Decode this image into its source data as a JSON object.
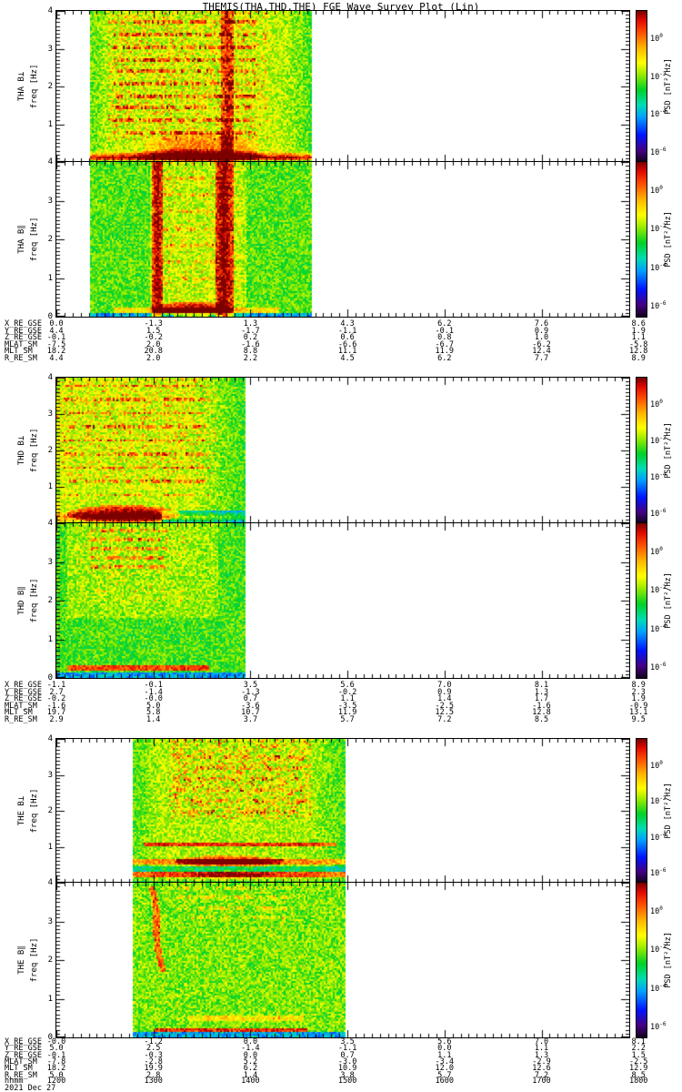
{
  "title": "THEMIS(THA,THD,THE) FGE Wave Survey Plot (Lin)",
  "date_label": "2021 Dec 27",
  "chart_data": {
    "type": "heatmap",
    "subtype": "wave-survey-spectrograms",
    "title": "THEMIS(THA,THD,THE) FGE Wave Survey Plot (Lin)",
    "date": "2021 Dec 27",
    "time_axis": {
      "label": "hhmm",
      "ticks": [
        "1200",
        "1300",
        "1400",
        "1500",
        "1600",
        "1700",
        "1800"
      ],
      "start": "1200",
      "end": "1800"
    },
    "freq_axis": {
      "label": "freq [Hz]",
      "min": 0,
      "max": 4,
      "major_ticks": [
        0,
        1,
        2,
        3,
        4
      ]
    },
    "colorbar": {
      "label": "PSD [nT²/Hz]",
      "base": "10",
      "tick_exponents": [
        "0",
        "-2",
        "-4",
        "-6"
      ],
      "top_color": "#7d0000",
      "bottom_color": "#0f0019"
    },
    "panels": [
      {
        "name": "THA B⊥",
        "sat": "THA",
        "component": "B-perp",
        "t_start": "12:21",
        "t_end": "14:38",
        "base": 0.615,
        "seed": 11,
        "description": "yellow broadband noise; strong red band below 0.3 Hz; harmonic red dashed lines; vertical red stripe near 13:50",
        "features": [
          {
            "type": "fadeL",
            "w": 0.1,
            "amp": -0.07
          },
          {
            "type": "fadeR",
            "w": 0.15,
            "amp": -0.09
          },
          {
            "type": "hband",
            "fy": 0.035,
            "h": 0.045,
            "amp": 0.38,
            "soft": true
          },
          {
            "type": "hband",
            "fy": 0.0,
            "h": 0.015,
            "amp": -0.18
          },
          {
            "type": "blob",
            "fx": 0.5,
            "fy": 0.1,
            "rx": 0.26,
            "ry": 0.1,
            "amp": 0.2
          },
          {
            "type": "blob",
            "fx": 0.48,
            "fy": 0.045,
            "rx": 0.3,
            "ry": 0.05,
            "amp": 0.18
          },
          {
            "type": "lines",
            "n": 10,
            "fy0": 0.2,
            "fy1": 0.93,
            "fx0": 0.1,
            "fx1": 0.74,
            "amp": 0.3,
            "prob": 0.6
          },
          {
            "type": "vband",
            "fx": 0.615,
            "w": 0.03,
            "amp": 0.3
          },
          {
            "type": "speckle",
            "fx0": 0.08,
            "fx1": 0.8,
            "fy0": 0.15,
            "fy1": 1,
            "amp": 0.22,
            "prob": 0.28
          }
        ]
      },
      {
        "name": "THA B∥",
        "sat": "THA",
        "component": "B-par",
        "t_start": "12:21",
        "t_end": "14:38",
        "base": 0.535,
        "seed": 22,
        "description": "green background; two full-height red vertical stripes ~13:05 and ~13:50; red blob below 0.3 Hz",
        "features": [
          {
            "type": "box",
            "fx0": 0.27,
            "fx1": 0.7,
            "fy0": 0,
            "fy1": 1,
            "amp": 0.07
          },
          {
            "type": "vband",
            "fx": 0.3,
            "w": 0.025,
            "amp": 0.4
          },
          {
            "type": "vband",
            "fx": 0.6,
            "w": 0.04,
            "amp": 0.42
          },
          {
            "type": "blob",
            "fx": 0.46,
            "fy": 0.055,
            "rx": 0.17,
            "ry": 0.05,
            "amp": 0.4
          },
          {
            "type": "hband",
            "fy": 0.05,
            "h": 0.02,
            "amp": 0.15,
            "fx0": 0.1,
            "fx1": 0.85
          },
          {
            "type": "hband",
            "fy": 0.012,
            "h": 0.022,
            "amp": -0.22
          },
          {
            "type": "lines",
            "n": 7,
            "fy0": 0.25,
            "fy1": 0.9,
            "fx0": 0.32,
            "fx1": 0.62,
            "amp": 0.18,
            "prob": 0.5
          },
          {
            "type": "speckle",
            "fx0": 0.3,
            "fx1": 0.68,
            "fy0": 0.1,
            "fy1": 1,
            "amp": 0.15,
            "prob": 0.2
          }
        ]
      },
      {
        "name": "THD B⊥",
        "sat": "THD",
        "component": "B-perp",
        "t_start": "12:00",
        "t_end": "13:57",
        "base": 0.62,
        "seed": 33,
        "description": "yellow noise; intense red blob below 0.3 Hz near 12:40; scattered red harmonic dashes; cyan lower-right",
        "features": [
          {
            "type": "fadeR",
            "w": 0.3,
            "amp": -0.1
          },
          {
            "type": "hband",
            "fy": 0.05,
            "h": 0.04,
            "amp": 0.2,
            "soft": true
          },
          {
            "type": "blob",
            "fx": 0.35,
            "fy": 0.07,
            "rx": 0.3,
            "ry": 0.06,
            "amp": 0.38
          },
          {
            "type": "hband",
            "fy": 0.0,
            "h": 0.012,
            "amp": -0.15
          },
          {
            "type": "box",
            "fx0": 0.55,
            "fx1": 1,
            "fy0": 0,
            "fy1": 0.09,
            "amp": -0.22
          },
          {
            "type": "lines",
            "n": 9,
            "fy0": 0.2,
            "fy1": 0.95,
            "fx0": 0.03,
            "fx1": 0.8,
            "amp": 0.27,
            "prob": 0.5
          },
          {
            "type": "speckle",
            "fx0": 0,
            "fx1": 0.85,
            "fy0": 0.3,
            "fy1": 1,
            "amp": 0.2,
            "prob": 0.25
          }
        ]
      },
      {
        "name": "THD B∥",
        "sat": "THD",
        "component": "B-par",
        "t_start": "12:00",
        "t_end": "13:57",
        "base": 0.525,
        "seed": 44,
        "description": "green-cyan background; orange dashes at top; thin red-orange line near 0.25 Hz; cyan bottom strip",
        "features": [
          {
            "type": "box",
            "fx0": 0.05,
            "fx1": 0.85,
            "fy0": 0.4,
            "fy1": 1,
            "amp": 0.06
          },
          {
            "type": "lines",
            "n": 5,
            "fy0": 0.72,
            "fy1": 0.96,
            "fx0": 0.18,
            "fx1": 0.58,
            "amp": 0.25,
            "prob": 0.65
          },
          {
            "type": "hband",
            "fy": 0.07,
            "h": 0.018,
            "amp": 0.35,
            "fx0": 0.05,
            "fx1": 0.8
          },
          {
            "type": "hband",
            "fy": 0.015,
            "h": 0.025,
            "amp": -0.22
          },
          {
            "type": "speckle",
            "fx0": 0.1,
            "fx1": 0.7,
            "fy0": 0.5,
            "fy1": 1,
            "amp": 0.15,
            "prob": 0.2
          }
        ]
      },
      {
        "name": "THE B⊥",
        "sat": "THE",
        "component": "B-perp",
        "t_start": "12:47",
        "t_end": "14:59",
        "base": 0.6,
        "seed": 55,
        "description": "yellow noise; dense red speckle above 2 Hz; red line ~1.1 Hz; strong red bands ~0.6 and ~0.25 Hz",
        "features": [
          {
            "type": "fadeL",
            "w": 0.12,
            "amp": -0.07
          },
          {
            "type": "fadeR",
            "w": 0.18,
            "amp": -0.08
          },
          {
            "type": "speckle",
            "fx0": 0.17,
            "fx1": 0.83,
            "fy0": 0.45,
            "fy1": 1,
            "amp": 0.26,
            "prob": 0.35
          },
          {
            "type": "lines",
            "n": 6,
            "fy0": 0.5,
            "fy1": 0.88,
            "fx0": 0.2,
            "fx1": 0.8,
            "amp": 0.2,
            "prob": 0.45
          },
          {
            "type": "hband",
            "fy": 0.27,
            "h": 0.016,
            "amp": 0.3,
            "fx0": 0.05,
            "fx1": 0.95
          },
          {
            "type": "blob",
            "fx": 0.45,
            "fy": 0.155,
            "rx": 0.26,
            "ry": 0.04,
            "amp": 0.34
          },
          {
            "type": "hband",
            "fy": 0.155,
            "h": 0.016,
            "amp": 0.2,
            "fx0": 0,
            "fx1": 1
          },
          {
            "type": "hband",
            "fy": 0.105,
            "h": 0.018,
            "amp": -0.14
          },
          {
            "type": "hband",
            "fy": 0.06,
            "h": 0.022,
            "amp": 0.28,
            "fx0": 0,
            "fx1": 1
          },
          {
            "type": "blob",
            "fx": 0.47,
            "fy": 0.06,
            "rx": 0.2,
            "ry": 0.03,
            "amp": 0.12
          },
          {
            "type": "hband",
            "fy": 0.0,
            "h": 0.015,
            "amp": -0.1
          }
        ]
      },
      {
        "name": "THE B∥",
        "sat": "THE",
        "component": "B-par",
        "t_start": "12:47",
        "t_end": "14:59",
        "base": 0.555,
        "seed": 66,
        "description": "green mottle; curved red falling-tone trace near 13:00; thin red line ~0.2 Hz; cyan bottom strip",
        "features": [
          {
            "type": "arc",
            "x0": 0.085,
            "dx": 0.05,
            "ytop": 0.98,
            "dy": 0.55,
            "w": 0.014,
            "amp": 0.33
          },
          {
            "type": "lines",
            "n": 4,
            "fy0": 0.78,
            "fy1": 0.97,
            "fx0": 0.2,
            "fx1": 0.75,
            "amp": 0.15,
            "prob": 0.5
          },
          {
            "type": "hband",
            "fy": 0.13,
            "h": 0.02,
            "amp": 0.12,
            "fx0": 0.25,
            "fx1": 0.8
          },
          {
            "type": "hband",
            "fy": 0.055,
            "h": 0.014,
            "amp": 0.33,
            "fx0": 0.1,
            "fx1": 0.82
          },
          {
            "type": "hband",
            "fy": 0.015,
            "h": 0.028,
            "amp": -0.25
          },
          {
            "type": "speckle",
            "fx0": 0,
            "fx1": 1,
            "fy0": 0,
            "fy1": 1,
            "amp": 0.1,
            "prob": 0.2
          }
        ]
      }
    ],
    "ephemeris": {
      "columns": [
        "1200",
        "1300",
        "1400",
        "1500",
        "1600",
        "1700",
        "1800"
      ],
      "blocks": [
        {
          "sat": "THA",
          "rows": [
            {
              "label": "X_RE_GSE",
              "values": [
                "0.0",
                "-1.3",
                "1.3",
                "4.3",
                "6.2",
                "7.6",
                "8.6"
              ]
            },
            {
              "label": "Y_RE_GSE",
              "values": [
                "4.4",
                "1.5",
                "-1.7",
                "-1.1",
                "-0.1",
                "0.9",
                "1.9"
              ]
            },
            {
              "label": "Z_RE_GSE",
              "values": [
                "-0.1",
                "-0.2",
                "0.2",
                "0.6",
                "0.8",
                "1.0",
                "1.1"
              ]
            },
            {
              "label": "MLAT_SM",
              "values": [
                "-7.5",
                "2.0",
                "-1.6",
                "-6.6",
                "-6.7",
                "-6.2",
                "-5.8"
              ]
            },
            {
              "label": "MLT_SM",
              "values": [
                "18.2",
                "20.8",
                "8.8",
                "11.1",
                "11.9",
                "12.4",
                "12.8"
              ]
            },
            {
              "label": "R_RE_SM",
              "values": [
                "4.4",
                "2.0",
                "2.2",
                "4.5",
                "6.2",
                "7.7",
                "8.9"
              ]
            }
          ]
        },
        {
          "sat": "THD",
          "rows": [
            {
              "label": "X_RE_GSE",
              "values": [
                "-1.1",
                "-0.1",
                "3.5",
                "5.6",
                "7.0",
                "8.1",
                "8.9"
              ]
            },
            {
              "label": "Y_RE_GSE",
              "values": [
                "2.7",
                "-1.4",
                "-1.3",
                "-0.2",
                "0.9",
                "1.3",
                "2.3"
              ]
            },
            {
              "label": "Z_RE_GSE",
              "values": [
                "-0.2",
                "-0.0",
                "0.7",
                "1.1",
                "1.4",
                "1.7",
                "1.9"
              ]
            },
            {
              "label": "MLAT_SM",
              "values": [
                "-1.6",
                "5.0",
                "-3.6",
                "-3.5",
                "-2.5",
                "-1.6",
                "-0.9"
              ]
            },
            {
              "label": "MLT_SM",
              "values": [
                "19.7",
                "5.8",
                "10.7",
                "11.9",
                "12.5",
                "12.8",
                "13.1"
              ]
            },
            {
              "label": "R_RE_SM",
              "values": [
                "2.9",
                "1.4",
                "3.7",
                "5.7",
                "7.2",
                "8.5",
                "9.5"
              ]
            }
          ]
        },
        {
          "sat": "THE",
          "rows": [
            {
              "label": "X_RE_GSE",
              "values": [
                "-0.0",
                "-1.2",
                "0.0",
                "3.5",
                "5.6",
                "7.0",
                "8.1"
              ]
            },
            {
              "label": "Y_RE_GSE",
              "values": [
                "5.0",
                "2.5",
                "-1.4",
                "-1.1",
                "0.0",
                "1.1",
                "2.2"
              ]
            },
            {
              "label": "Z_RE_GSE",
              "values": [
                "-0.1",
                "-0.3",
                "0.0",
                "0.7",
                "1.1",
                "1.3",
                "1.5"
              ]
            },
            {
              "label": "MLAT_SM",
              "values": [
                "-7.8",
                "-2.8",
                "5.2",
                "-3.0",
                "-3.4",
                "-2.9",
                "-2.5"
              ]
            },
            {
              "label": "MLT_SM",
              "values": [
                "18.2",
                "19.9",
                "6.2",
                "10.9",
                "12.0",
                "12.6",
                "12.9"
              ]
            },
            {
              "label": "R_RE_SM",
              "values": [
                "5.0",
                "2.8",
                "1.4",
                "3.8",
                "5.7",
                "7.2",
                "8.5"
              ]
            }
          ]
        }
      ]
    }
  }
}
